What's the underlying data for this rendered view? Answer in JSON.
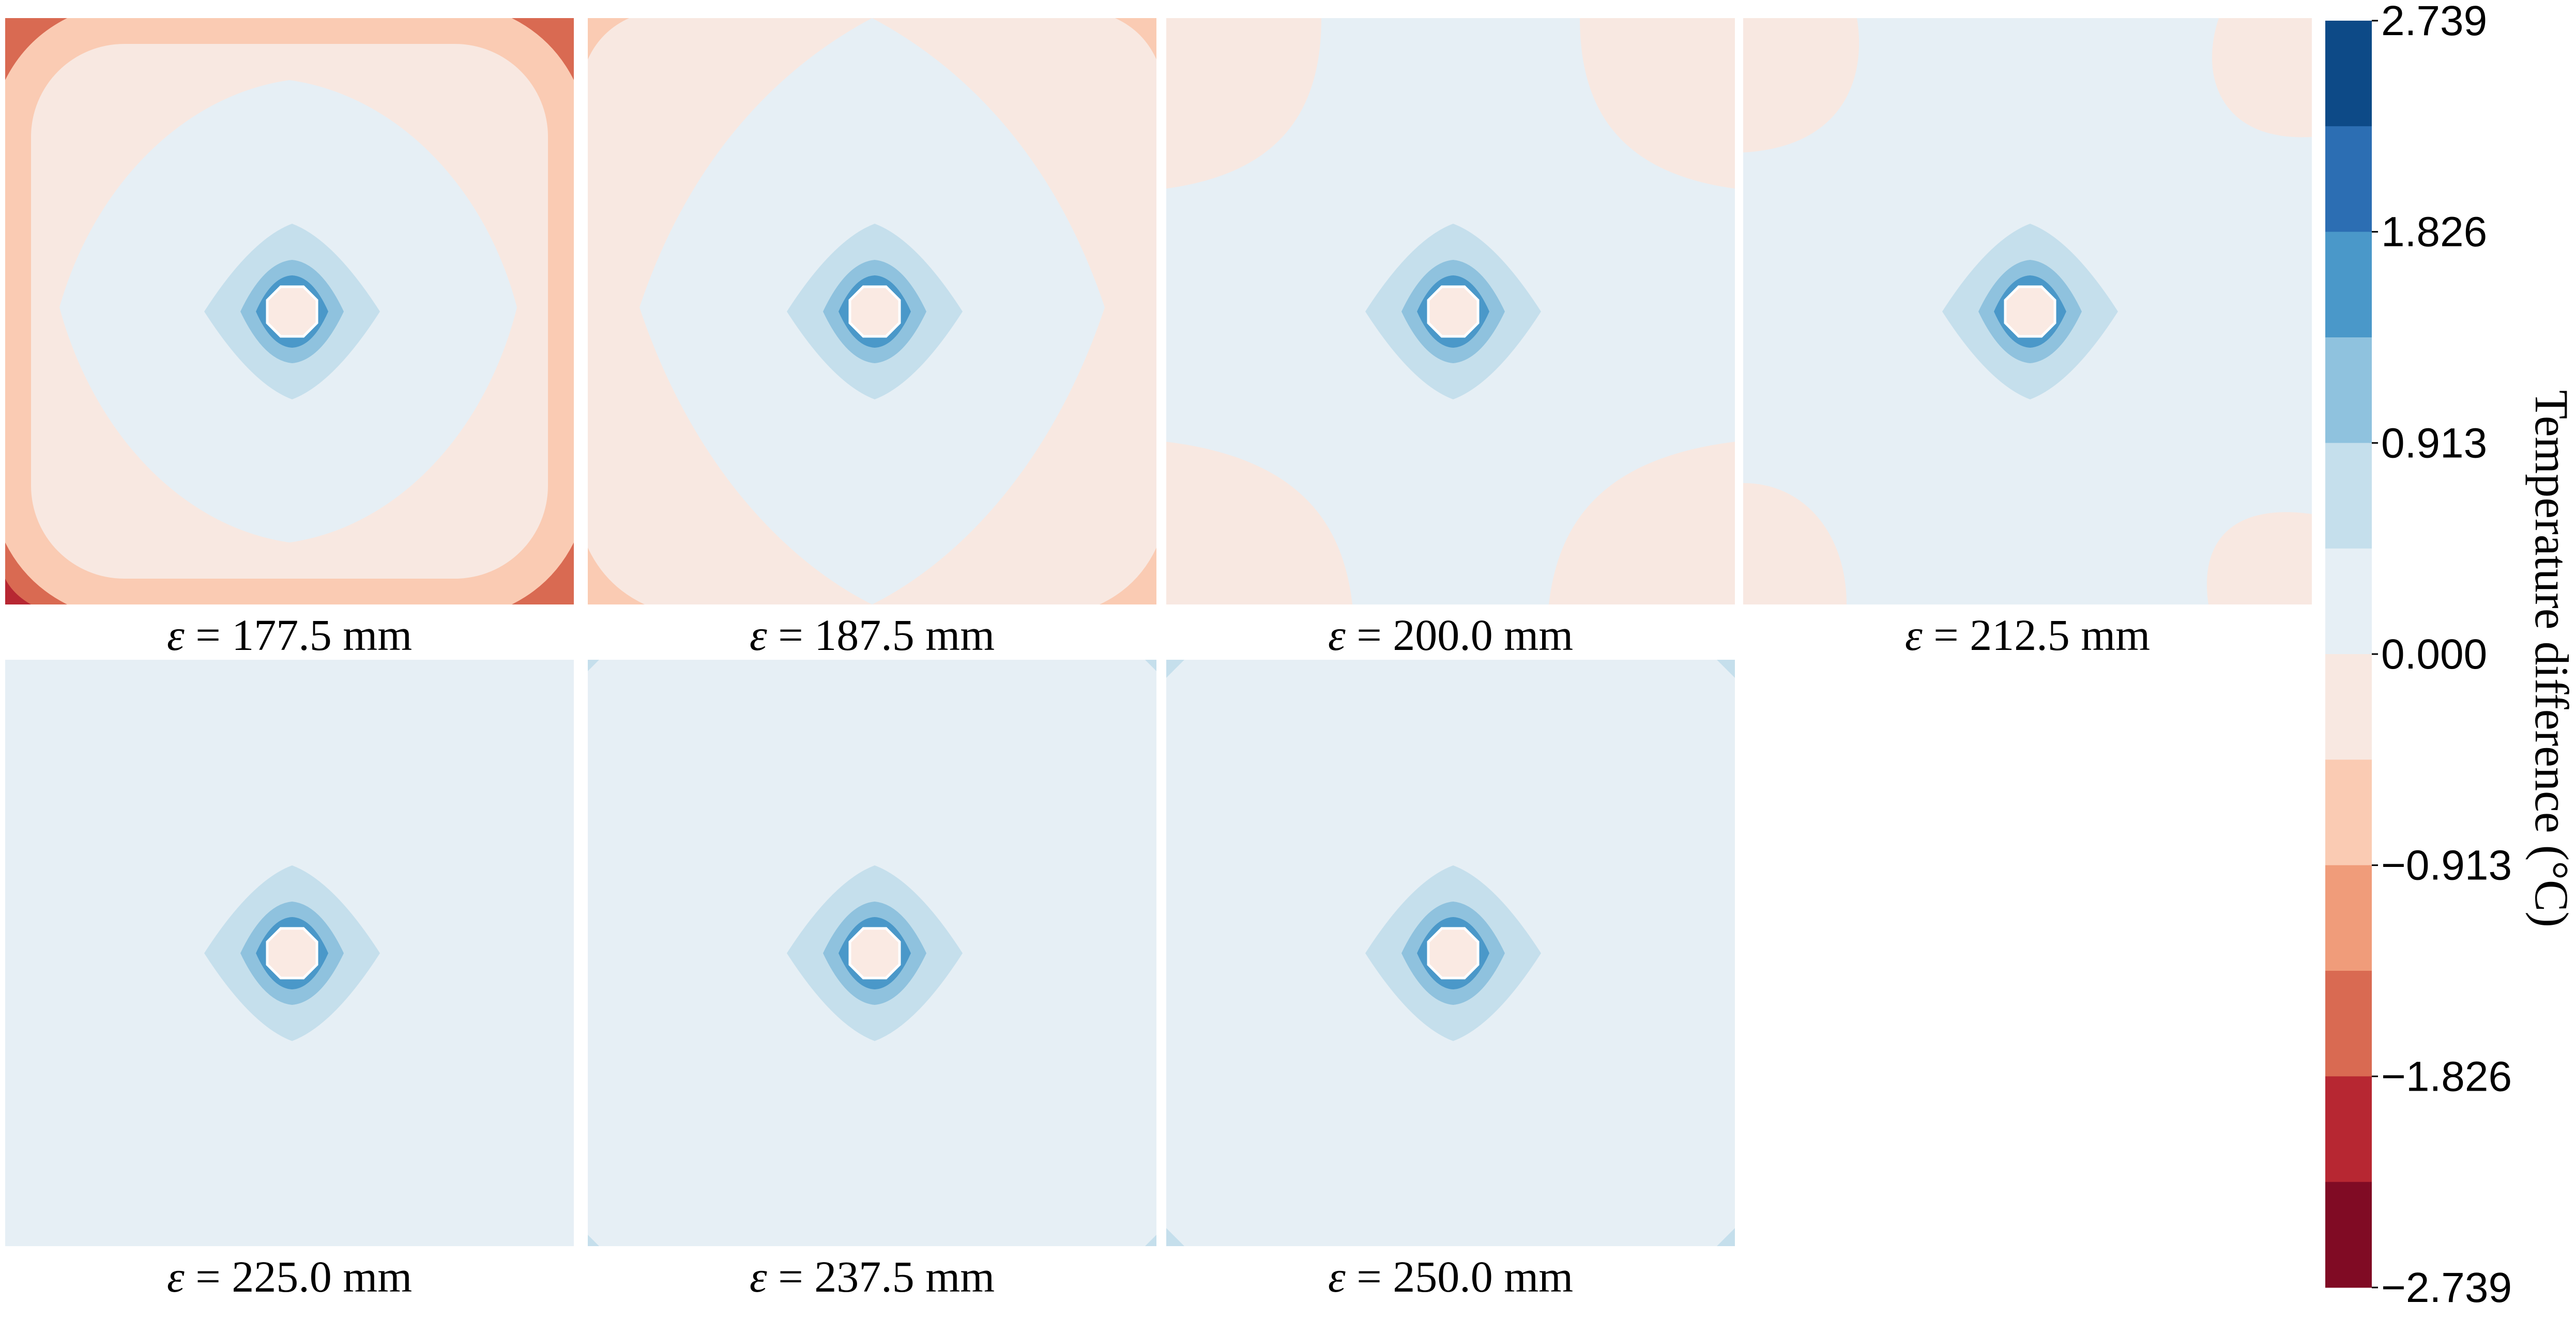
{
  "chart_data": {
    "type": "heatmap",
    "description_units": "contour fields of temperature difference",
    "panels": [
      {
        "label_symbol": "ε",
        "label_eq": " = ",
        "label_value": "177.5 mm",
        "epsilon_mm": 177.5
      },
      {
        "label_symbol": "ε",
        "label_eq": " = ",
        "label_value": "187.5 mm",
        "epsilon_mm": 187.5
      },
      {
        "label_symbol": "ε",
        "label_eq": " = ",
        "label_value": "200.0 mm",
        "epsilon_mm": 200.0
      },
      {
        "label_symbol": "ε",
        "label_eq": " = ",
        "label_value": "212.5 mm",
        "epsilon_mm": 212.5
      },
      {
        "label_symbol": "ε",
        "label_eq": " = ",
        "label_value": "225.0 mm",
        "epsilon_mm": 225.0
      },
      {
        "label_symbol": "ε",
        "label_eq": " = ",
        "label_value": "237.5 mm",
        "epsilon_mm": 237.5
      },
      {
        "label_symbol": "ε",
        "label_eq": " = ",
        "label_value": "250.0 mm",
        "epsilon_mm": 250.0
      }
    ],
    "colorbar": {
      "title": "Temperature difference (°C)",
      "range": [
        -2.739,
        2.739
      ],
      "ticks": [
        2.739,
        1.826,
        0.913,
        0.0,
        -0.913,
        -1.826,
        -2.739
      ],
      "tick_labels": [
        "2.739",
        "1.826",
        "0.913",
        "0.000",
        "−0.913",
        "−1.826",
        "−2.739"
      ],
      "levels_top_to_bottom": [
        "#0d4a87",
        "#2c6eb3",
        "#4a98c9",
        "#8fc2de",
        "#c5dfec",
        "#e6eff5",
        "#f8e8e1",
        "#facbb3",
        "#f09c7a",
        "#d96a52",
        "#b72732",
        "#800b24"
      ]
    }
  }
}
